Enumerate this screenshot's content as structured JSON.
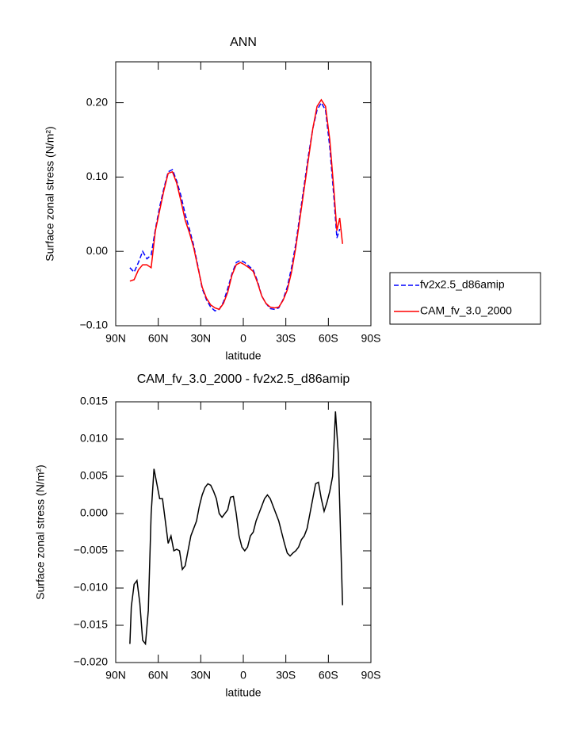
{
  "chart_data": [
    {
      "type": "line",
      "title": "ANN",
      "xlabel": "latitude",
      "ylabel": "Surface zonal stress (N/m²)",
      "x": [
        80,
        77,
        74,
        71,
        68,
        65,
        62,
        59,
        56,
        53,
        50,
        47,
        44,
        41,
        38,
        35,
        32,
        29,
        26,
        23,
        20,
        17,
        14,
        11,
        8,
        5,
        2,
        -1,
        -4,
        -7,
        -10,
        -13,
        -16,
        -19,
        -22,
        -25,
        -28,
        -31,
        -34,
        -37,
        -40,
        -43,
        -46,
        -49,
        -52,
        -55,
        -58,
        -61,
        -64,
        -66,
        -68,
        -70
      ],
      "series": [
        {
          "name": "fv2x2.5_d86amip",
          "color": "#0000ff",
          "dashed": true,
          "values": [
            -0.022,
            -0.028,
            -0.015,
            0.0,
            -0.01,
            -0.005,
            0.03,
            0.06,
            0.085,
            0.107,
            0.11,
            0.095,
            0.075,
            0.05,
            0.03,
            0.008,
            -0.02,
            -0.05,
            -0.065,
            -0.075,
            -0.08,
            -0.078,
            -0.068,
            -0.05,
            -0.03,
            -0.015,
            -0.012,
            -0.015,
            -0.02,
            -0.025,
            -0.04,
            -0.06,
            -0.07,
            -0.077,
            -0.078,
            -0.076,
            -0.065,
            -0.048,
            -0.022,
            0.01,
            0.05,
            0.09,
            0.13,
            0.165,
            0.19,
            0.2,
            0.19,
            0.14,
            0.07,
            0.018,
            0.03,
            null
          ]
        },
        {
          "name": "CAM_fv_3.0_2000",
          "color": "#ff0000",
          "dashed": false,
          "values": [
            -0.04,
            -0.038,
            -0.025,
            -0.018,
            -0.018,
            -0.022,
            0.028,
            0.055,
            0.082,
            0.105,
            0.107,
            0.092,
            0.068,
            0.042,
            0.025,
            0.005,
            -0.022,
            -0.048,
            -0.063,
            -0.072,
            -0.076,
            -0.078,
            -0.07,
            -0.055,
            -0.032,
            -0.018,
            -0.015,
            -0.018,
            -0.022,
            -0.027,
            -0.042,
            -0.06,
            -0.07,
            -0.075,
            -0.076,
            -0.075,
            -0.066,
            -0.052,
            -0.028,
            0.005,
            0.045,
            0.085,
            0.125,
            0.165,
            0.195,
            0.204,
            0.195,
            0.15,
            0.08,
            0.028,
            0.045,
            0.01
          ]
        }
      ],
      "xlim": [
        90,
        -90
      ],
      "xticks": [
        {
          "value": 90,
          "label": "90N"
        },
        {
          "value": 60,
          "label": "60N"
        },
        {
          "value": 30,
          "label": "30N"
        },
        0,
        {
          "value": -30,
          "label": "30S"
        },
        {
          "value": -60,
          "label": "60S"
        },
        {
          "value": -90,
          "label": "90S"
        }
      ],
      "ylim": [
        -0.1,
        0.255
      ],
      "yticks": [
        {
          "value": -0.1,
          "label": "−0.10"
        },
        {
          "value": 0,
          "label": "0.00"
        },
        {
          "value": 0.1,
          "label": "0.10"
        },
        {
          "value": 0.2,
          "label": "0.20"
        }
      ],
      "legend": "right"
    },
    {
      "type": "line",
      "title": "CAM_fv_3.0_2000 - fv2x2.5_d86amip",
      "xlabel": "latitude",
      "ylabel": "Surface zonal stress (N/m²)",
      "x": [
        80,
        79,
        77,
        75,
        73,
        71,
        69,
        67,
        65,
        63,
        61,
        59,
        57,
        55,
        53,
        51,
        49,
        47,
        45,
        43,
        41,
        39,
        37,
        35,
        33,
        31,
        29,
        27,
        25,
        23,
        21,
        19,
        17,
        15,
        13,
        11,
        9,
        7,
        5,
        3,
        1,
        -1,
        -3,
        -5,
        -7,
        -9,
        -11,
        -13,
        -15,
        -17,
        -19,
        -21,
        -23,
        -25,
        -27,
        -29,
        -31,
        -33,
        -35,
        -37,
        -39,
        -41,
        -43,
        -45,
        -47,
        -49,
        -51,
        -53,
        -55,
        -57,
        -59,
        -61,
        -63,
        -65,
        -67,
        -70
      ],
      "series": [
        {
          "color": "#000000",
          "dashed": false,
          "values": [
            -0.0175,
            -0.0125,
            -0.0095,
            -0.009,
            -0.012,
            -0.017,
            -0.0175,
            -0.013,
            0.0,
            0.006,
            0.004,
            0.002,
            0.002,
            -0.001,
            -0.004,
            -0.003,
            -0.005,
            -0.0048,
            -0.005,
            -0.0075,
            -0.007,
            -0.005,
            -0.003,
            -0.002,
            -0.001,
            0.001,
            0.0025,
            0.0035,
            0.004,
            0.0038,
            0.003,
            0.002,
            0.0,
            -0.0005,
            0.0,
            0.0005,
            0.0022,
            0.0023,
            0.0,
            -0.003,
            -0.0045,
            -0.005,
            -0.0045,
            -0.003,
            -0.0025,
            -0.001,
            0.0,
            0.001,
            0.002,
            0.0025,
            0.002,
            0.001,
            0.0,
            -0.001,
            -0.0025,
            -0.004,
            -0.0053,
            -0.0057,
            -0.0053,
            -0.005,
            -0.0045,
            -0.0035,
            -0.003,
            -0.002,
            0.0,
            0.002,
            0.004,
            0.0042,
            0.002,
            0.0003,
            0.0015,
            0.003,
            0.005,
            0.0137,
            0.008,
            -0.0123
          ]
        }
      ],
      "xlim": [
        90,
        -90
      ],
      "xticks": [
        {
          "value": 90,
          "label": "90N"
        },
        {
          "value": 60,
          "label": "60N"
        },
        {
          "value": 30,
          "label": "30N"
        },
        0,
        {
          "value": -30,
          "label": "30S"
        },
        {
          "value": -60,
          "label": "60S"
        },
        {
          "value": -90,
          "label": "90S"
        }
      ],
      "ylim": [
        -0.02,
        0.015
      ],
      "yticks": [
        {
          "value": -0.02,
          "label": "−0.020"
        },
        {
          "value": -0.015,
          "label": "−0.015"
        },
        {
          "value": -0.01,
          "label": "−0.010"
        },
        {
          "value": -0.005,
          "label": "−0.005"
        },
        {
          "value": 0,
          "label": "0.000"
        },
        {
          "value": 0.005,
          "label": "0.005"
        },
        {
          "value": 0.01,
          "label": "0.010"
        },
        {
          "value": 0.015,
          "label": "0.015"
        }
      ]
    }
  ]
}
